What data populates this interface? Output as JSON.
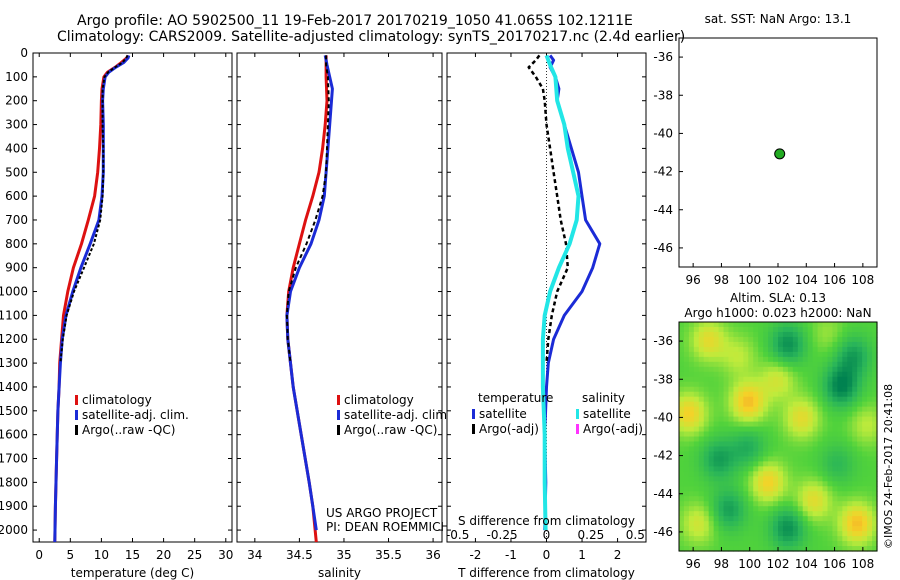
{
  "header": {
    "line1": "Argo profile: AO 5902500_11 19-Feb-2017 20170219_1050 41.065S 102.1211E",
    "line2": "Climatology: CARS2009. Satellite-adjusted climatology: synTS_20170217.nc (2.4d earlier)"
  },
  "depth_ticks": [
    "0",
    "100",
    "200",
    "300",
    "400",
    "500",
    "600",
    "700",
    "800",
    "900",
    "1000",
    "1100",
    "1200",
    "1300",
    "1400",
    "1500",
    "1600",
    "1700",
    "1800",
    "1900",
    "2000"
  ],
  "colors": {
    "climatology": "#dd1111",
    "satellite": "#1b2bd6",
    "argo": "#000000",
    "salinity_sat": "#22e6e6",
    "salinity_argo": "#ff33ff"
  },
  "chart_data": [
    {
      "type": "line",
      "id": "temperature",
      "xlabel": "temperature (deg C)",
      "xlim": [
        -1,
        31
      ],
      "ylim": [
        2050,
        0
      ],
      "xticks": [
        "0",
        "5",
        "10",
        "15",
        "20",
        "25",
        "30"
      ],
      "legend": [
        "climatology",
        "satellite-adj. clim.",
        "Argo(..raw -QC)"
      ],
      "legend_position": "lower-right",
      "series": [
        {
          "name": "climatology",
          "depth": [
            10,
            20,
            40,
            60,
            80,
            100,
            150,
            200,
            300,
            400,
            500,
            600,
            700,
            800,
            900,
            1000,
            1100,
            1200,
            1300,
            1400,
            1500,
            1700,
            1900,
            2050
          ],
          "values": [
            14.3,
            14.1,
            13.2,
            12.2,
            11.0,
            10.4,
            10.1,
            10.0,
            9.9,
            9.7,
            9.4,
            8.9,
            7.9,
            6.8,
            5.5,
            4.6,
            3.9,
            3.6,
            3.3,
            3.2,
            3.0,
            2.8,
            2.6,
            2.5
          ]
        },
        {
          "name": "satellite-adj. clim.",
          "depth": [
            10,
            20,
            40,
            60,
            80,
            100,
            150,
            200,
            300,
            400,
            500,
            600,
            700,
            800,
            900,
            1000,
            1100,
            1200,
            1300,
            1400,
            1500,
            1700,
            1900,
            2050
          ],
          "values": [
            14.4,
            14.3,
            13.6,
            12.3,
            11.2,
            10.6,
            10.3,
            10.2,
            10.3,
            10.3,
            10.3,
            10.1,
            9.6,
            8.2,
            6.7,
            5.4,
            4.3,
            3.7,
            3.4,
            3.2,
            3.0,
            2.8,
            2.6,
            2.5
          ]
        },
        {
          "name": "Argo(..raw -QC)",
          "depth": [
            10,
            20,
            40,
            60,
            80,
            100,
            150,
            200,
            300,
            400,
            500,
            600,
            700,
            800,
            900,
            1000,
            1100,
            1200,
            1300
          ],
          "values": [
            14.2,
            14.0,
            13.4,
            12.2,
            11.1,
            10.5,
            10.2,
            10.2,
            10.2,
            10.3,
            10.3,
            10.2,
            9.8,
            8.8,
            7.2,
            5.6,
            4.4,
            3.8,
            3.4
          ]
        }
      ]
    },
    {
      "type": "line",
      "id": "salinity",
      "xlabel": "salinity",
      "xlim": [
        33.8,
        36.1
      ],
      "ylim": [
        2050,
        0
      ],
      "xticks": [
        "34",
        "34.5",
        "35",
        "35.5",
        "36"
      ],
      "legend": [
        "climatology",
        "satellite-adj. clim.",
        "Argo(..raw -QC)"
      ],
      "legend_position": "lower-right",
      "annotation": [
        "US ARGO PROJECT",
        "PI: DEAN ROEMMICH"
      ],
      "series": [
        {
          "name": "climatology",
          "depth": [
            10,
            50,
            100,
            200,
            300,
            400,
            500,
            600,
            700,
            800,
            900,
            1000,
            1100,
            1200,
            1400,
            1600,
            1800,
            1900,
            2050
          ],
          "values": [
            34.8,
            34.8,
            34.8,
            34.81,
            34.79,
            34.76,
            34.72,
            34.65,
            34.57,
            34.5,
            34.43,
            34.38,
            34.36,
            34.37,
            34.43,
            34.52,
            34.61,
            34.65,
            34.69
          ]
        },
        {
          "name": "satellite-adj. clim.",
          "depth": [
            10,
            50,
            100,
            150,
            200,
            300,
            400,
            500,
            600,
            700,
            800,
            900,
            1000,
            1100,
            1200,
            1400,
            1600,
            1800,
            1900,
            2000
          ],
          "values": [
            34.79,
            34.81,
            34.84,
            34.87,
            34.86,
            34.84,
            34.82,
            34.8,
            34.78,
            34.72,
            34.63,
            34.5,
            34.4,
            34.36,
            34.37,
            34.43,
            34.52,
            34.61,
            34.65,
            34.69
          ]
        },
        {
          "name": "Argo(..raw -QC)",
          "depth": [
            10,
            50,
            100,
            200,
            300,
            400,
            500,
            600,
            700,
            800,
            900,
            1000,
            1100,
            1200,
            1300
          ],
          "values": [
            34.8,
            34.8,
            34.82,
            34.83,
            34.82,
            34.81,
            34.8,
            34.76,
            34.68,
            34.58,
            34.46,
            34.38,
            34.36,
            34.37,
            34.4
          ]
        }
      ]
    },
    {
      "type": "line",
      "id": "difference",
      "xlabel": "T difference from climatology",
      "xlabel_top": "S difference from climatology",
      "xlim": [
        -2.8,
        2.8
      ],
      "ylim": [
        2050,
        0
      ],
      "xticks": [
        "-2",
        "-1",
        "0",
        "1",
        "2"
      ],
      "xticks_salinity": [
        "-0.5",
        "-0.25",
        "0",
        "0.25",
        "0.5"
      ],
      "legend_temperature": {
        "title": "temperature",
        "items": [
          "satellite",
          "Argo(-adj)"
        ]
      },
      "legend_salinity": {
        "title": "salinity",
        "items": [
          "satellite",
          "Argo(-adj)"
        ]
      },
      "series": [
        {
          "name": "temperature satellite",
          "depth": [
            10,
            30,
            60,
            100,
            150,
            200,
            300,
            400,
            500,
            600,
            700,
            800,
            900,
            1000,
            1100,
            1200,
            1300,
            1400,
            1600,
            1800,
            2000
          ],
          "values": [
            0.1,
            0.2,
            0.1,
            0.25,
            0.35,
            0.3,
            0.5,
            0.7,
            0.9,
            1.0,
            1.1,
            1.5,
            1.3,
            1.0,
            0.5,
            0.2,
            0.05,
            0.0,
            -0.05,
            -0.02,
            -0.05
          ]
        },
        {
          "name": "temperature Argo(-adj)",
          "depth": [
            10,
            30,
            60,
            100,
            150,
            200,
            300,
            400,
            500,
            600,
            700,
            800,
            900,
            1000,
            1100,
            1200,
            1300
          ],
          "values": [
            -0.2,
            -0.3,
            -0.5,
            -0.3,
            -0.1,
            -0.05,
            0.0,
            0.1,
            0.2,
            0.3,
            0.4,
            0.55,
            0.6,
            0.3,
            0.15,
            0.05,
            0.0
          ]
        },
        {
          "name": "salinity satellite",
          "depth": [
            10,
            50,
            100,
            200,
            300,
            400,
            500,
            600,
            700,
            800,
            900,
            1000,
            1100,
            1200,
            1300,
            1400,
            1600,
            1800,
            2000
          ],
          "values": [
            0.0,
            0.02,
            0.05,
            0.06,
            0.1,
            0.12,
            0.15,
            0.18,
            0.17,
            0.13,
            0.07,
            0.02,
            -0.01,
            -0.02,
            -0.02,
            -0.02,
            -0.01,
            -0.01,
            -0.005
          ]
        }
      ]
    },
    {
      "type": "scatter",
      "id": "position_map",
      "title": "sat. SST: NaN Argo: 13.1",
      "xlim": [
        95,
        109
      ],
      "ylim": [
        -47,
        -35
      ],
      "xticks": [
        "96",
        "98",
        "100",
        "102",
        "104",
        "106",
        "108"
      ],
      "yticks": [
        "-36",
        "-38",
        "-40",
        "-42",
        "-44",
        "-46"
      ],
      "points": [
        {
          "x": 102.12,
          "y": -41.07
        }
      ]
    },
    {
      "type": "heatmap",
      "id": "sla_map",
      "title_line1": "Altim. SLA: 0.13",
      "title_line2": "Argo h1000: 0.023 h2000: NaN",
      "xlim": [
        95,
        109
      ],
      "ylim": [
        -47,
        -35
      ],
      "xticks": [
        "96",
        "98",
        "100",
        "102",
        "104",
        "106",
        "108"
      ],
      "yticks": [
        "-36",
        "-38",
        "-40",
        "-42",
        "-44",
        "-46"
      ]
    }
  ],
  "footer": {
    "stamp": "©IMOS 24-Feb-2017 20:41:08"
  }
}
